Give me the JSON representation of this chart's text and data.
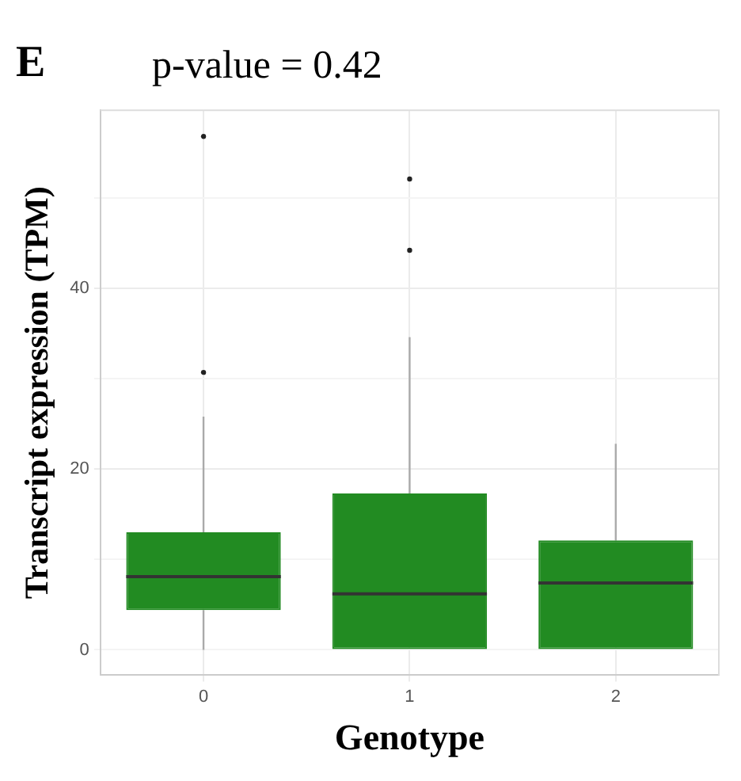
{
  "chart_data": {
    "type": "box",
    "title": "p-value = 0.42",
    "xlabel": "Genotype",
    "ylabel": "Transcript expression (TPM)",
    "annotations": [
      "E"
    ],
    "categories": [
      "0",
      "1",
      "2"
    ],
    "color": "#228b22",
    "boxes": [
      {
        "low": 0,
        "q1": 4.4,
        "median": 8.1,
        "q3": 13.0,
        "high": 25.8,
        "outliers": [
          30.7,
          56.8
        ]
      },
      {
        "low": 0,
        "q1": 0,
        "median": 6.2,
        "q3": 17.3,
        "high": 34.6,
        "outliers": [
          44.2,
          52.1
        ]
      },
      {
        "low": 0,
        "q1": 0,
        "median": 7.4,
        "q3": 12.1,
        "high": 22.8
      }
    ],
    "ylim": [
      -2.8,
      59.7
    ],
    "yticks": [
      0,
      {
        "value": 10,
        "label": null
      },
      20,
      {
        "value": 30,
        "label": null
      },
      40,
      {
        "value": 50,
        "label": null
      }
    ],
    "grid": true
  }
}
